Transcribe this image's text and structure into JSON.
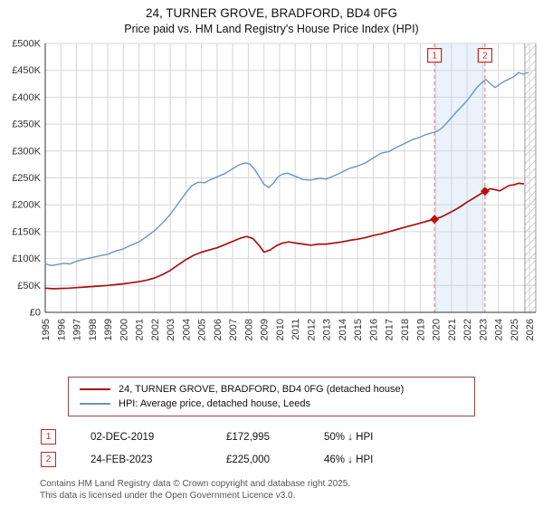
{
  "title": "24, TURNER GROVE, BRADFORD, BD4 0FG",
  "subtitle": "Price paid vs. HM Land Registry's House Price Index (HPI)",
  "legend": {
    "series1": "24, TURNER GROVE, BRADFORD, BD4 0FG (detached house)",
    "series2": "HPI: Average price, detached house, Leeds"
  },
  "transactions": [
    {
      "label": "1",
      "date": "02-DEC-2019",
      "price": "£172,995",
      "hpi_diff": "50% ↓ HPI"
    },
    {
      "label": "2",
      "date": "24-FEB-2023",
      "price": "£225,000",
      "hpi_diff": "46% ↓ HPI"
    }
  ],
  "footer": {
    "line1": "Contains HM Land Registry data © Crown copyright and database right 2025.",
    "line2": "This data is licensed under the Open Government Licence v3.0."
  },
  "colors": {
    "property_line": "#aa1111",
    "hpi_line": "#6d94c1",
    "marker": "#bb1111",
    "badge": "#cc2222",
    "dashed": "#e07b7b",
    "band": "#eaf2fc",
    "grid": "#d6d6d6",
    "axis": "#333333"
  },
  "chart_data": {
    "type": "line",
    "title": "Price paid vs. HM Land Registry's House Price Index (HPI)",
    "x_axis": {
      "plot_min": 1995,
      "plot_max": 2026.4,
      "tick_years": [
        1995,
        1996,
        1997,
        1998,
        1999,
        2000,
        2001,
        2002,
        2003,
        2004,
        2005,
        2006,
        2007,
        2008,
        2009,
        2010,
        2011,
        2012,
        2013,
        2014,
        2015,
        2016,
        2017,
        2018,
        2019,
        2020,
        2021,
        2022,
        2023,
        2024,
        2025,
        2026
      ]
    },
    "y_axis": {
      "min": 0,
      "max": 500000,
      "tick_step": 50000,
      "tick_values": [
        0,
        50000,
        100000,
        150000,
        200000,
        250000,
        300000,
        350000,
        400000,
        450000,
        500000
      ],
      "tick_labels": [
        "£0",
        "£50K",
        "£100K",
        "£150K",
        "£200K",
        "£250K",
        "£300K",
        "£350K",
        "£400K",
        "£450K",
        "£500K"
      ]
    },
    "series": [
      {
        "name": "HPI: Average price, detached house, Leeds",
        "color": "#6d94c1",
        "points": [
          [
            1995.0,
            90000
          ],
          [
            1995.4,
            87000
          ],
          [
            1995.8,
            89000
          ],
          [
            1996.2,
            91000
          ],
          [
            1996.6,
            90000
          ],
          [
            1997.0,
            95000
          ],
          [
            1997.5,
            99000
          ],
          [
            1998.0,
            102000
          ],
          [
            1998.5,
            105000
          ],
          [
            1999.0,
            108000
          ],
          [
            1999.5,
            114000
          ],
          [
            2000.0,
            118000
          ],
          [
            2000.5,
            125000
          ],
          [
            2001.0,
            131000
          ],
          [
            2001.5,
            141000
          ],
          [
            2002.0,
            152000
          ],
          [
            2002.5,
            166000
          ],
          [
            2003.0,
            182000
          ],
          [
            2003.5,
            202000
          ],
          [
            2004.0,
            222000
          ],
          [
            2004.4,
            236000
          ],
          [
            2004.8,
            242000
          ],
          [
            2005.2,
            241000
          ],
          [
            2005.6,
            247000
          ],
          [
            2006.0,
            252000
          ],
          [
            2006.5,
            258000
          ],
          [
            2007.0,
            267000
          ],
          [
            2007.4,
            274000
          ],
          [
            2007.8,
            278000
          ],
          [
            2008.1,
            276000
          ],
          [
            2008.4,
            266000
          ],
          [
            2008.7,
            252000
          ],
          [
            2009.0,
            238000
          ],
          [
            2009.3,
            232000
          ],
          [
            2009.6,
            240000
          ],
          [
            2009.9,
            252000
          ],
          [
            2010.2,
            257000
          ],
          [
            2010.5,
            259000
          ],
          [
            2011.0,
            253000
          ],
          [
            2011.5,
            247000
          ],
          [
            2012.0,
            246000
          ],
          [
            2012.5,
            249000
          ],
          [
            2013.0,
            248000
          ],
          [
            2013.5,
            254000
          ],
          [
            2014.0,
            261000
          ],
          [
            2014.5,
            268000
          ],
          [
            2015.0,
            272000
          ],
          [
            2015.5,
            278000
          ],
          [
            2016.0,
            287000
          ],
          [
            2016.5,
            296000
          ],
          [
            2017.0,
            299000
          ],
          [
            2017.5,
            307000
          ],
          [
            2018.0,
            314000
          ],
          [
            2018.5,
            321000
          ],
          [
            2019.0,
            326000
          ],
          [
            2019.4,
            331000
          ],
          [
            2019.8,
            334000
          ],
          [
            2020.1,
            337000
          ],
          [
            2020.4,
            343000
          ],
          [
            2020.7,
            352000
          ],
          [
            2021.0,
            362000
          ],
          [
            2021.3,
            372000
          ],
          [
            2021.6,
            381000
          ],
          [
            2022.0,
            394000
          ],
          [
            2022.3,
            405000
          ],
          [
            2022.6,
            417000
          ],
          [
            2022.9,
            426000
          ],
          [
            2023.2,
            433000
          ],
          [
            2023.5,
            425000
          ],
          [
            2023.8,
            418000
          ],
          [
            2024.1,
            424000
          ],
          [
            2024.4,
            430000
          ],
          [
            2024.7,
            434000
          ],
          [
            2025.0,
            438000
          ],
          [
            2025.3,
            446000
          ],
          [
            2025.6,
            443000
          ],
          [
            2025.9,
            446000
          ]
        ]
      },
      {
        "name": "24, TURNER GROVE, BRADFORD, BD4 0FG (detached house)",
        "color": "#aa1111",
        "points": [
          [
            1995.0,
            45000
          ],
          [
            1995.5,
            44000
          ],
          [
            1996.0,
            44500
          ],
          [
            1996.5,
            45000
          ],
          [
            1997.0,
            46000
          ],
          [
            1997.5,
            47000
          ],
          [
            1998.0,
            48000
          ],
          [
            1998.5,
            49000
          ],
          [
            1999.0,
            50000
          ],
          [
            1999.5,
            51500
          ],
          [
            2000.0,
            53000
          ],
          [
            2000.5,
            55000
          ],
          [
            2001.0,
            57000
          ],
          [
            2001.5,
            60000
          ],
          [
            2002.0,
            64000
          ],
          [
            2002.5,
            70000
          ],
          [
            2003.0,
            78000
          ],
          [
            2003.5,
            88000
          ],
          [
            2004.0,
            98000
          ],
          [
            2004.5,
            106000
          ],
          [
            2005.0,
            112000
          ],
          [
            2005.5,
            116000
          ],
          [
            2006.0,
            120000
          ],
          [
            2006.5,
            126000
          ],
          [
            2007.0,
            132000
          ],
          [
            2007.5,
            138000
          ],
          [
            2007.9,
            141000
          ],
          [
            2008.3,
            137000
          ],
          [
            2008.7,
            124000
          ],
          [
            2009.0,
            112000
          ],
          [
            2009.4,
            116000
          ],
          [
            2009.8,
            124000
          ],
          [
            2010.2,
            129000
          ],
          [
            2010.6,
            131000
          ],
          [
            2011.0,
            129000
          ],
          [
            2011.5,
            127000
          ],
          [
            2012.0,
            125000
          ],
          [
            2012.5,
            127000
          ],
          [
            2013.0,
            127000
          ],
          [
            2013.5,
            129000
          ],
          [
            2014.0,
            131000
          ],
          [
            2014.5,
            134000
          ],
          [
            2015.0,
            136000
          ],
          [
            2015.5,
            139000
          ],
          [
            2016.0,
            143000
          ],
          [
            2016.5,
            146000
          ],
          [
            2017.0,
            150000
          ],
          [
            2017.5,
            154000
          ],
          [
            2018.0,
            158000
          ],
          [
            2018.5,
            162000
          ],
          [
            2019.0,
            166000
          ],
          [
            2019.5,
            170000
          ],
          [
            2019.92,
            172995
          ],
          [
            2020.4,
            178000
          ],
          [
            2020.8,
            184000
          ],
          [
            2021.2,
            190000
          ],
          [
            2021.6,
            197000
          ],
          [
            2022.0,
            205000
          ],
          [
            2022.4,
            212000
          ],
          [
            2022.8,
            219000
          ],
          [
            2023.15,
            225000
          ],
          [
            2023.5,
            230000
          ],
          [
            2023.8,
            228000
          ],
          [
            2024.1,
            226000
          ],
          [
            2024.4,
            231000
          ],
          [
            2024.7,
            236000
          ],
          [
            2025.0,
            237000
          ],
          [
            2025.3,
            240000
          ],
          [
            2025.6,
            239000
          ]
        ]
      }
    ],
    "sale_markers": [
      {
        "label": "1",
        "year": 2019.92,
        "price": 172995
      },
      {
        "label": "2",
        "year": 2023.15,
        "price": 225000
      }
    ],
    "shaded_band": {
      "from": 2019.92,
      "to": 2023.15
    },
    "future_hatch": {
      "from": 2025.7,
      "to": 2026.4
    },
    "legend_position": "bottom",
    "grid": true
  }
}
